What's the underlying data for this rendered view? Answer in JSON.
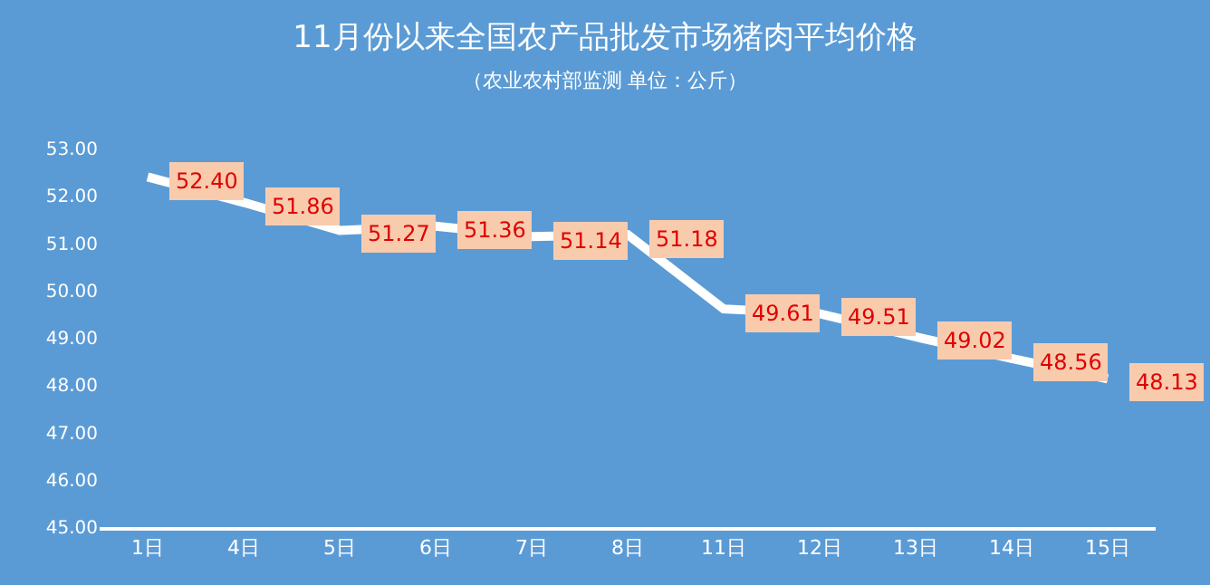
{
  "chart_data": {
    "type": "line",
    "title": "11月份以来全国农产品批发市场猪肉平均价格",
    "subtitle": "（农业农村部监测 单位：公斤）",
    "categories": [
      "1日",
      "4日",
      "5日",
      "6日",
      "7日",
      "8日",
      "11日",
      "12日",
      "13日",
      "14日",
      "15日"
    ],
    "series": [
      {
        "color": "#ffffff",
        "values": [
          52.4,
          51.86,
          51.27,
          51.36,
          51.14,
          51.18,
          49.61,
          49.51,
          49.02,
          48.56,
          48.13
        ],
        "value_labels": [
          "52.40",
          "51.86",
          "51.27",
          "51.36",
          "51.14",
          "51.18",
          "49.61",
          "49.51",
          "49.02",
          "48.56",
          "48.13"
        ]
      }
    ],
    "ylim": [
      45,
      53
    ],
    "yticks": [
      {
        "value": 45,
        "label": "45.00"
      },
      {
        "value": 46,
        "label": "46.00"
      },
      {
        "value": 47,
        "label": "47.00"
      },
      {
        "value": 48,
        "label": "48.00"
      },
      {
        "value": 49,
        "label": "49.00"
      },
      {
        "value": 50,
        "label": "50.00"
      },
      {
        "value": 51,
        "label": "51.00"
      },
      {
        "value": 52,
        "label": "52.00"
      },
      {
        "value": 53,
        "label": "53.00"
      }
    ],
    "grid": false,
    "legend": false,
    "marker": "none",
    "line_style": "solid"
  }
}
